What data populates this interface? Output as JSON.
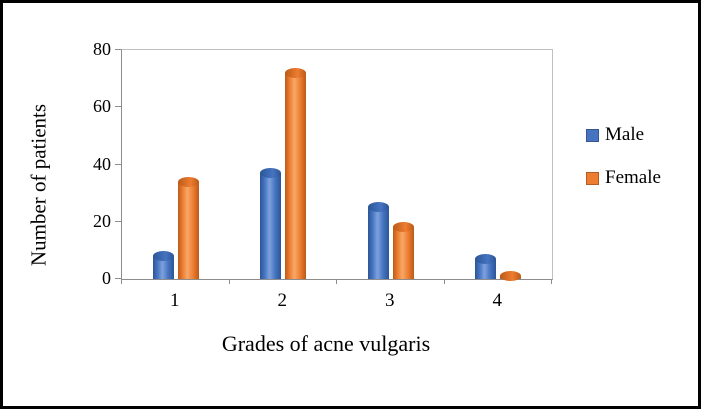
{
  "chart_data": {
    "type": "bar",
    "title": "",
    "categories": [
      "1",
      "2",
      "3",
      "4"
    ],
    "series": [
      {
        "name": "Male",
        "color": "#4674C1",
        "light": "#7FA1DD",
        "dark": "#2B5596",
        "values": [
          8,
          37,
          25,
          7
        ]
      },
      {
        "name": "Female",
        "color": "#ED7D31",
        "light": "#F7A868",
        "dark": "#BC5A17",
        "values": [
          34,
          72,
          18,
          1
        ]
      }
    ],
    "xlabel": "Grades of acne vulgaris",
    "ylabel": "Number of patients",
    "ylim": [
      0,
      80
    ],
    "yticks": [
      0,
      20,
      40,
      60,
      80
    ],
    "legend_position": "right",
    "grid": false,
    "bar_style": "cylinder"
  }
}
